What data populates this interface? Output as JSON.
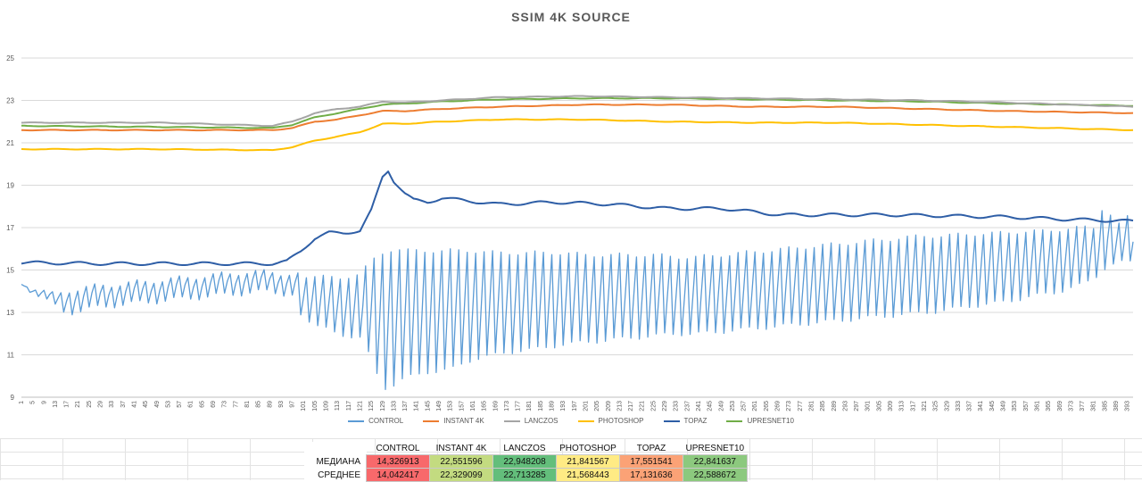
{
  "chart_data": {
    "type": "line",
    "title": "SSIM 4K SOURCE",
    "xlabel": "",
    "ylabel": "",
    "ylim": [
      9,
      25
    ],
    "yticks": [
      9,
      11,
      13,
      15,
      17,
      19,
      21,
      23,
      25
    ],
    "xrange": [
      1,
      395
    ],
    "xticks": [
      1,
      5,
      9,
      13,
      17,
      21,
      25,
      29,
      33,
      37,
      41,
      45,
      49,
      53,
      57,
      61,
      65,
      69,
      73,
      77,
      81,
      85,
      89,
      93,
      97,
      101,
      105,
      109,
      113,
      117,
      121,
      125,
      129,
      133,
      137,
      141,
      145,
      149,
      153,
      157,
      161,
      165,
      169,
      173,
      177,
      181,
      185,
      189,
      193,
      197,
      201,
      205,
      209,
      213,
      217,
      221,
      225,
      229,
      233,
      237,
      241,
      245,
      249,
      253,
      257,
      261,
      265,
      269,
      273,
      277,
      281,
      285,
      289,
      293,
      297,
      301,
      305,
      309,
      313,
      317,
      321,
      325,
      329,
      333,
      337,
      341,
      345,
      349,
      353,
      357,
      361,
      365,
      369,
      373,
      377,
      381,
      385,
      389,
      393
    ],
    "grid": "horizontal",
    "legend_position": "bottom",
    "series": [
      {
        "name": "CONTROL",
        "color": "#5B9BD5",
        "oscillating": true,
        "x": [
          1,
          13,
          17,
          25,
          33,
          41,
          49,
          57,
          65,
          73,
          81,
          89,
          97,
          105,
          113,
          121,
          125,
          129,
          133,
          137,
          145,
          153,
          161,
          169,
          177,
          185,
          193,
          201,
          209,
          217,
          225,
          233,
          241,
          249,
          257,
          265,
          273,
          281,
          289,
          297,
          305,
          313,
          321,
          329,
          337,
          345,
          353,
          361,
          369,
          377,
          381,
          385,
          389,
          393,
          395
        ],
        "upper": [
          14.4,
          13.8,
          14.0,
          14.2,
          14.3,
          14.4,
          14.5,
          14.6,
          14.7,
          14.8,
          14.9,
          14.9,
          14.8,
          14.7,
          14.6,
          14.8,
          15.4,
          15.8,
          16.0,
          15.9,
          15.9,
          15.9,
          15.9,
          15.8,
          15.8,
          15.8,
          15.8,
          15.7,
          15.7,
          15.7,
          15.7,
          15.6,
          15.6,
          15.7,
          15.8,
          15.9,
          16.0,
          16.1,
          16.2,
          16.3,
          16.4,
          16.5,
          16.6,
          16.6,
          16.7,
          16.7,
          16.8,
          16.8,
          16.9,
          17.0,
          17.0,
          18.2,
          17.0,
          17.5,
          17.3
        ],
        "lower": [
          14.3,
          13.0,
          12.4,
          12.6,
          12.8,
          12.9,
          13.0,
          13.1,
          13.2,
          13.3,
          13.4,
          13.5,
          13.3,
          12.4,
          12.0,
          11.8,
          10.8,
          9.4,
          9.6,
          9.9,
          10.2,
          10.3,
          10.8,
          11.0,
          11.2,
          11.3,
          11.5,
          11.6,
          11.7,
          11.8,
          11.9,
          12.0,
          12.0,
          12.1,
          12.2,
          12.3,
          12.4,
          12.5,
          12.6,
          12.7,
          12.8,
          12.9,
          13.0,
          13.1,
          13.3,
          13.4,
          13.6,
          13.8,
          14.0,
          14.3,
          14.6,
          15.1,
          15.3,
          15.4,
          15.4
        ]
      },
      {
        "name": "INSTANT 4K",
        "color": "#ED7D31",
        "x": [
          1,
          50,
          90,
          97,
          105,
          113,
          121,
          129,
          137,
          150,
          170,
          200,
          230,
          260,
          290,
          320,
          350,
          395
        ],
        "y": [
          21.6,
          21.6,
          21.6,
          21.7,
          22.0,
          22.1,
          22.3,
          22.5,
          22.5,
          22.6,
          22.7,
          22.8,
          22.8,
          22.7,
          22.7,
          22.6,
          22.5,
          22.4
        ]
      },
      {
        "name": "LANCZOS",
        "color": "#A5A5A5",
        "x": [
          1,
          50,
          90,
          97,
          105,
          113,
          121,
          129,
          137,
          150,
          170,
          200,
          230,
          260,
          290,
          320,
          350,
          395
        ],
        "y": [
          21.95,
          21.95,
          21.8,
          22.0,
          22.4,
          22.6,
          22.7,
          22.95,
          22.9,
          23.0,
          23.15,
          23.2,
          23.15,
          23.1,
          23.05,
          23.0,
          22.9,
          22.7
        ]
      },
      {
        "name": "PHOTOSHOP",
        "color": "#FFC000",
        "x": [
          1,
          50,
          90,
          97,
          105,
          113,
          121,
          129,
          137,
          150,
          170,
          200,
          230,
          260,
          290,
          320,
          350,
          395
        ],
        "y": [
          20.7,
          20.7,
          20.65,
          20.8,
          21.1,
          21.3,
          21.5,
          21.9,
          21.9,
          22.0,
          22.1,
          22.1,
          22.0,
          21.95,
          21.95,
          21.85,
          21.75,
          21.6
        ]
      },
      {
        "name": "TOPAZ",
        "color": "#2E5EA6",
        "x": [
          1,
          30,
          60,
          90,
          95,
          100,
          105,
          110,
          115,
          121,
          125,
          129,
          131,
          133,
          137,
          140,
          145,
          150,
          170,
          190,
          210,
          230,
          250,
          270,
          290,
          310,
          330,
          350,
          370,
          395
        ],
        "y": [
          15.35,
          15.3,
          15.3,
          15.3,
          15.4,
          15.9,
          16.5,
          16.75,
          16.75,
          16.85,
          17.8,
          19.4,
          19.7,
          19.2,
          18.6,
          18.3,
          18.2,
          18.4,
          18.1,
          18.2,
          18.1,
          17.9,
          17.9,
          17.6,
          17.6,
          17.6,
          17.55,
          17.5,
          17.4,
          17.3
        ]
      },
      {
        "name": "UPRESNET10",
        "color": "#70AD47",
        "x": [
          1,
          50,
          90,
          97,
          105,
          113,
          121,
          129,
          137,
          150,
          170,
          200,
          230,
          260,
          290,
          320,
          350,
          395
        ],
        "y": [
          21.8,
          21.75,
          21.7,
          21.85,
          22.2,
          22.4,
          22.6,
          22.8,
          22.85,
          22.95,
          23.05,
          23.1,
          23.1,
          23.05,
          23.0,
          22.95,
          22.85,
          22.75
        ]
      }
    ]
  },
  "stats_table": {
    "headers": [
      "CONTROL",
      "INSTANT 4K",
      "LANCZOS",
      "PHOTOSHOP",
      "TOPAZ",
      "UPRESNET10"
    ],
    "rows": [
      {
        "label": "МЕДИАНА",
        "values": [
          "14,326913",
          "22,551596",
          "22,948208",
          "21,841567",
          "17,551541",
          "22,841637"
        ]
      },
      {
        "label": "СРЕДНЕЕ",
        "values": [
          "14,042417",
          "22,329099",
          "22,713285",
          "21,568443",
          "17,131636",
          "22,588672"
        ]
      }
    ],
    "cell_colors": [
      [
        "#F8696B",
        "#C3DB80",
        "#63BE7B",
        "#FFEB84",
        "#FBA276",
        "#8CC97E"
      ],
      [
        "#F8696B",
        "#C3DB80",
        "#63BE7B",
        "#FFEB84",
        "#FBA276",
        "#8CC97E"
      ]
    ]
  }
}
